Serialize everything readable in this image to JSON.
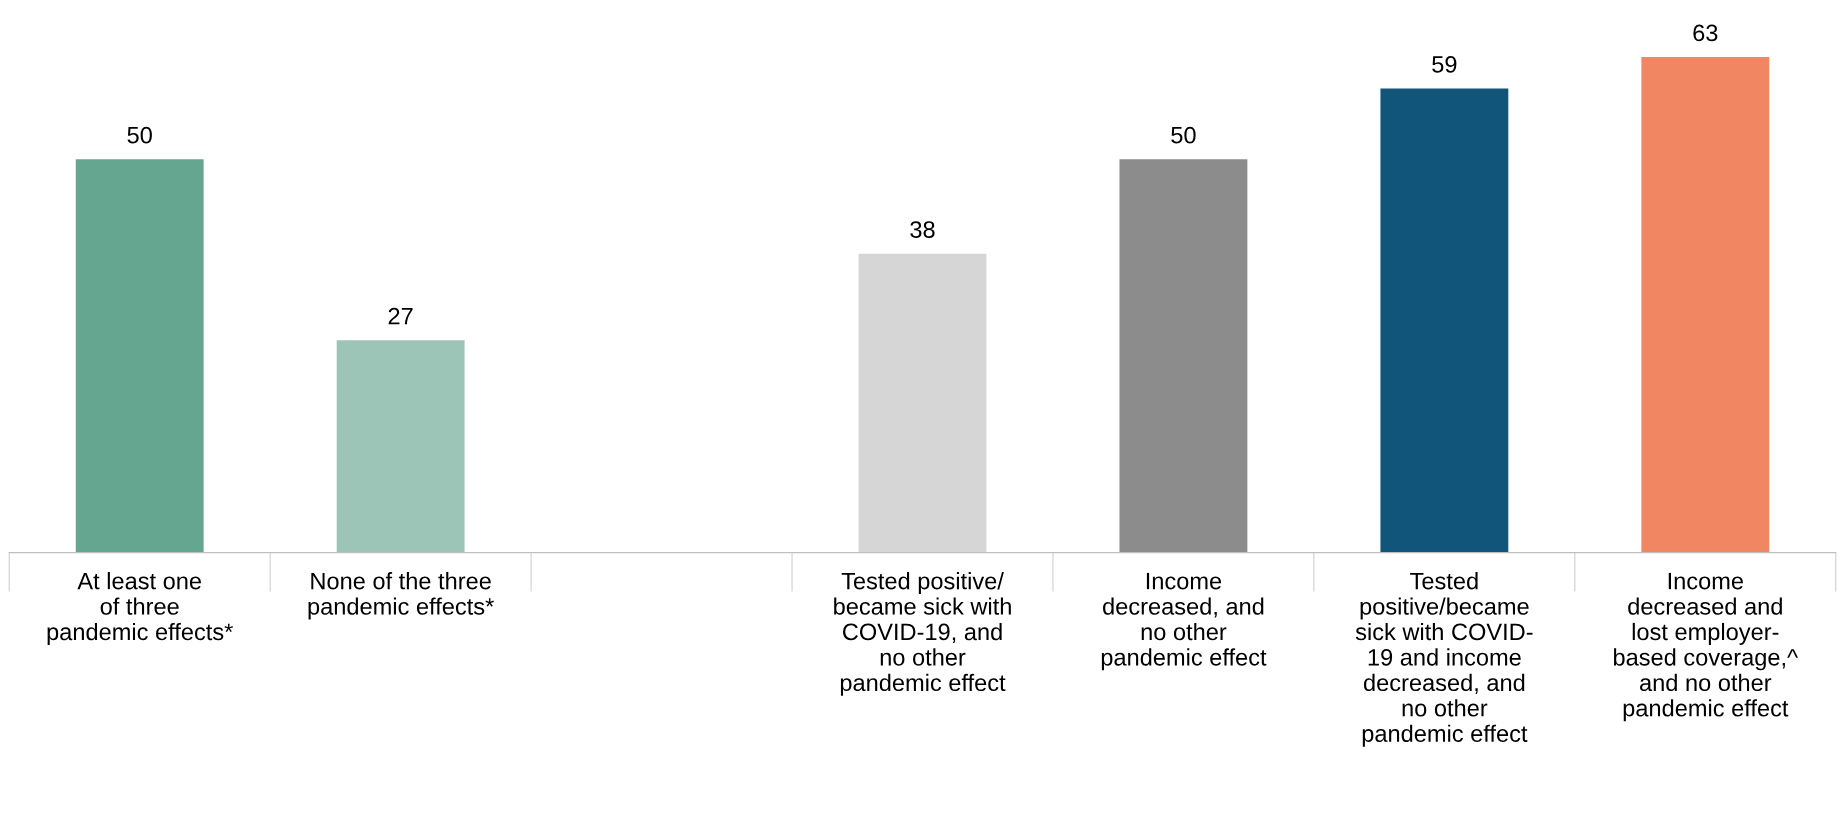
{
  "chart_data": {
    "type": "bar",
    "categories": [
      "At least one\nof three\npandemic effects*",
      "None of the three\npandemic effects*",
      null,
      "Tested positive/\nbecame sick with\nCOVID-19, and\nno other\npandemic effect",
      "Income\ndecreased, and\nno other\npandemic effect",
      "Tested\npositive/became\nsick with COVID-\n19 and income\ndecreased, and\nno other\npandemic effect",
      "Income\ndecreased and\nlost employer-\nbased coverage,^\nand no other\npandemic effect"
    ],
    "values": [
      50,
      27,
      null,
      38,
      50,
      59,
      63
    ],
    "colors": [
      "#64a68f",
      "#9cc5b7",
      "#ffffff",
      "#d6d6d6",
      "#8c8c8c",
      "#12557a",
      "#f08662"
    ],
    "data_labels": true,
    "grid": false,
    "legend": false
  }
}
